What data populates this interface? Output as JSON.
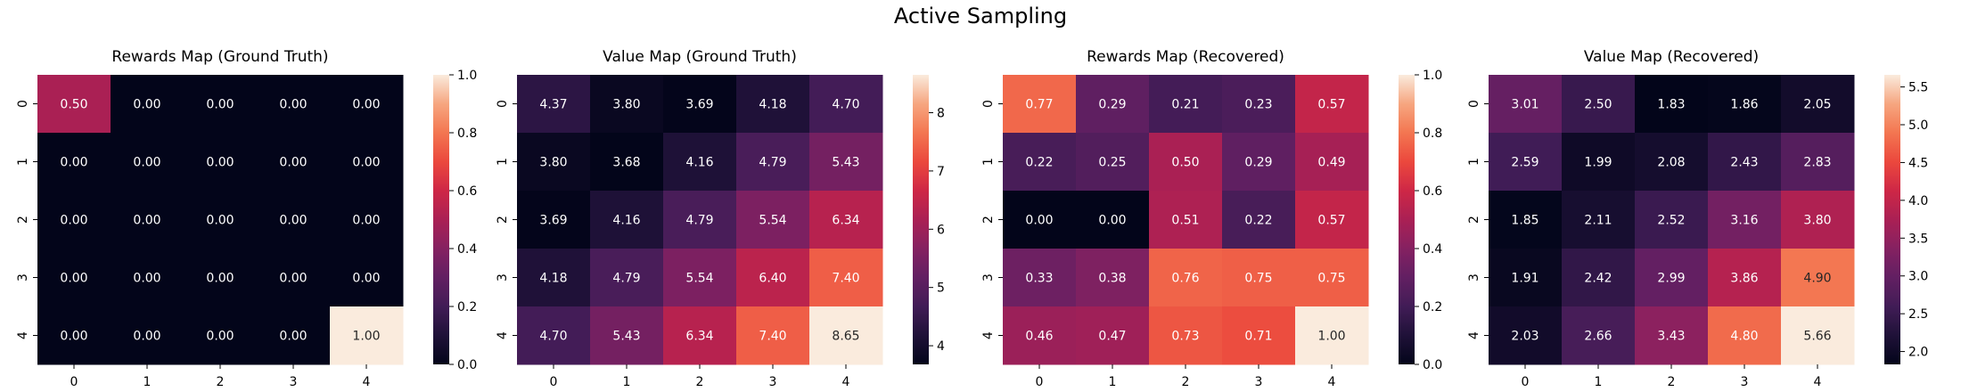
{
  "title": "Active Sampling",
  "chart_data": [
    {
      "type": "heatmap",
      "title": "Rewards Map (Ground Truth)",
      "x": [
        "0",
        "1",
        "2",
        "3",
        "4"
      ],
      "y": [
        "0",
        "1",
        "2",
        "3",
        "4"
      ],
      "values": [
        [
          0.5,
          0.0,
          0.0,
          0.0,
          0.0
        ],
        [
          0.0,
          0.0,
          0.0,
          0.0,
          0.0
        ],
        [
          0.0,
          0.0,
          0.0,
          0.0,
          0.0
        ],
        [
          0.0,
          0.0,
          0.0,
          0.0,
          0.0
        ],
        [
          0.0,
          0.0,
          0.0,
          0.0,
          1.0
        ]
      ],
      "colorbar": {
        "min": 0.0,
        "max": 1.0,
        "ticks": [
          "0.0",
          "0.2",
          "0.4",
          "0.6",
          "0.8",
          "1.0"
        ]
      },
      "colormap": "rocket"
    },
    {
      "type": "heatmap",
      "title": "Value Map (Ground Truth)",
      "x": [
        "0",
        "1",
        "2",
        "3",
        "4"
      ],
      "y": [
        "0",
        "1",
        "2",
        "3",
        "4"
      ],
      "values": [
        [
          4.37,
          3.8,
          3.69,
          4.18,
          4.7
        ],
        [
          3.8,
          3.68,
          4.16,
          4.79,
          5.43
        ],
        [
          3.69,
          4.16,
          4.79,
          5.54,
          6.34
        ],
        [
          4.18,
          4.79,
          5.54,
          6.4,
          7.4
        ],
        [
          4.7,
          5.43,
          6.34,
          7.4,
          8.65
        ]
      ],
      "colorbar": {
        "min": 3.68,
        "max": 8.65,
        "ticks": [
          "4",
          "5",
          "6",
          "7",
          "8"
        ]
      },
      "colormap": "rocket"
    },
    {
      "type": "heatmap",
      "title": "Rewards Map (Recovered)",
      "x": [
        "0",
        "1",
        "2",
        "3",
        "4"
      ],
      "y": [
        "0",
        "1",
        "2",
        "3",
        "4"
      ],
      "values": [
        [
          0.77,
          0.29,
          0.21,
          0.23,
          0.57
        ],
        [
          0.22,
          0.25,
          0.5,
          0.29,
          0.49
        ],
        [
          0.0,
          0.0,
          0.51,
          0.22,
          0.57
        ],
        [
          0.33,
          0.38,
          0.76,
          0.75,
          0.75
        ],
        [
          0.46,
          0.47,
          0.73,
          0.71,
          1.0
        ]
      ],
      "colorbar": {
        "min": 0.0,
        "max": 1.0,
        "ticks": [
          "0.0",
          "0.2",
          "0.4",
          "0.6",
          "0.8",
          "1.0"
        ]
      },
      "colormap": "rocket"
    },
    {
      "type": "heatmap",
      "title": "Value Map (Recovered)",
      "x": [
        "0",
        "1",
        "2",
        "3",
        "4"
      ],
      "y": [
        "0",
        "1",
        "2",
        "3",
        "4"
      ],
      "values": [
        [
          3.01,
          2.5,
          1.83,
          1.86,
          2.05
        ],
        [
          2.59,
          1.99,
          2.08,
          2.43,
          2.83
        ],
        [
          1.85,
          2.11,
          2.52,
          3.16,
          3.8
        ],
        [
          1.91,
          2.42,
          2.99,
          3.86,
          4.9
        ],
        [
          2.03,
          2.66,
          3.43,
          4.8,
          5.66
        ]
      ],
      "colorbar": {
        "min": 1.83,
        "max": 5.66,
        "ticks": [
          "2.0",
          "2.5",
          "3.0",
          "3.5",
          "4.0",
          "4.5",
          "5.0",
          "5.5"
        ]
      },
      "colormap": "rocket"
    }
  ]
}
